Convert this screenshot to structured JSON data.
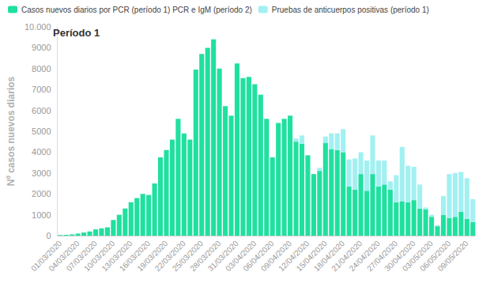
{
  "chart_data": {
    "type": "bar",
    "title": "Período 1",
    "y_label": "Nº casos nuevos diarios",
    "stacked": true,
    "grid": false,
    "legend": "top-left",
    "categories": [
      "01/03/2020",
      null,
      null,
      "04/03/2020",
      null,
      null,
      "07/03/2020",
      null,
      null,
      "10/03/2020",
      null,
      null,
      "13/03/2020",
      null,
      null,
      "16/03/2020",
      null,
      null,
      "19/03/2020",
      null,
      null,
      "22/03/2020",
      null,
      null,
      "25/03/2020",
      null,
      null,
      "28/03/2020",
      null,
      null,
      "31/03/2020",
      null,
      null,
      "03/04/2020",
      null,
      null,
      "06/04/2020",
      null,
      null,
      "09/04/2020",
      null,
      null,
      "12/04/2020",
      null,
      null,
      "15/04/2020",
      null,
      null,
      "18/04/2020",
      null,
      null,
      "21/04/2020",
      null,
      null,
      "24/04/2020",
      null,
      null,
      "27/04/2020",
      null,
      null,
      "30/04/2020",
      null,
      null,
      "03/05/2020",
      null,
      null,
      "06/05/2020",
      null,
      null,
      "09/05/2020",
      null
    ],
    "series": [
      {
        "name": "Casos nuevos diarios por PCR (período 1) PCR e IgM (período 2)",
        "color": "#20e0a0",
        "values": [
          30,
          40,
          60,
          100,
          150,
          200,
          300,
          350,
          400,
          750,
          1000,
          1300,
          1600,
          1800,
          2000,
          1950,
          2500,
          3750,
          4100,
          4600,
          5600,
          4900,
          4600,
          7950,
          8700,
          9000,
          9400,
          8000,
          6200,
          5750,
          8250,
          7550,
          7600,
          7250,
          6750,
          5600,
          3750,
          5400,
          5600,
          5750,
          4500,
          4400,
          3850,
          2950,
          3100,
          4450,
          4150,
          4100,
          4000,
          2350,
          2200,
          2950,
          2150,
          2950,
          2350,
          2450,
          2200,
          1600,
          1650,
          1600,
          1700,
          1300,
          1250,
          900,
          450,
          1000,
          850,
          900,
          1150,
          800,
          650
        ]
      },
      {
        "name": "Pruebas de anticuerpos positivas (período 1)",
        "color": "#a2f0f2",
        "values": [
          null,
          null,
          null,
          null,
          null,
          null,
          null,
          null,
          null,
          null,
          null,
          null,
          null,
          null,
          null,
          null,
          null,
          null,
          null,
          null,
          null,
          null,
          null,
          null,
          null,
          null,
          null,
          null,
          null,
          null,
          null,
          null,
          null,
          null,
          null,
          null,
          null,
          null,
          null,
          null,
          150,
          400,
          0,
          0,
          150,
          300,
          750,
          800,
          1100,
          1300,
          1500,
          1050,
          1450,
          1850,
          1250,
          1150,
          400,
          1300,
          2600,
          1750,
          1600,
          1150,
          100,
          100,
          50,
          900,
          2100,
          2100,
          1900,
          1950,
          1100
        ]
      }
    ],
    "ylim": [
      0,
      10000
    ],
    "yticks": [
      0,
      1000,
      2000,
      3000,
      4000,
      5000,
      6000,
      7000,
      8000,
      9000,
      {
        "value": 10000,
        "label": "10.000"
      }
    ]
  }
}
